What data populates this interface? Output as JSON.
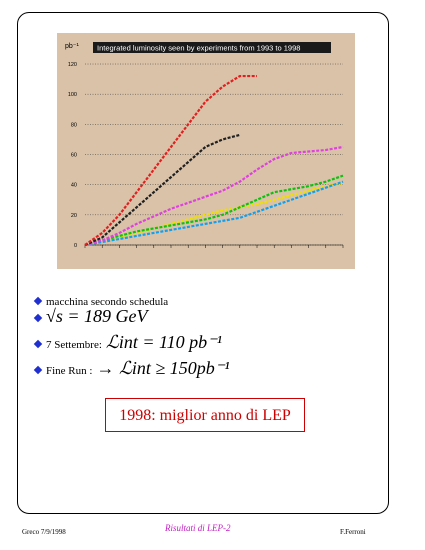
{
  "slide": {
    "bullets": [
      {
        "text": "macchina secondo schedula"
      },
      {
        "text": "√s = 189 GeV"
      },
      {
        "label": "7 Settembre:",
        "text": "ℒint  =  110 pb⁻¹"
      },
      {
        "label": "Fine Run :",
        "text": "→  ℒint  ≥  150pb⁻¹"
      }
    ],
    "highlight": "1998: miglior anno di LEP",
    "footer": {
      "left": "Greco 7/9/1998",
      "center": "Risultati di LEP-2",
      "right": "F.Ferroni"
    }
  },
  "chart_data": {
    "type": "line",
    "title": "Integrated luminosity seen by experiments from 1993 to 1998",
    "y_label": "pb⁻¹",
    "categories": [
      null,
      null,
      null,
      null,
      null,
      null,
      null,
      null,
      null,
      null,
      null,
      null,
      null,
      null,
      null,
      null
    ],
    "series": [
      {
        "color": "#f0e000",
        "values": [
          0,
          2,
          5,
          8,
          11,
          14,
          17,
          20,
          23,
          25,
          27,
          30,
          33,
          36,
          39,
          41
        ]
      },
      {
        "color": "#10c010",
        "values": [
          0,
          3,
          6,
          9,
          11,
          13,
          15,
          17,
          20,
          25,
          30,
          35,
          37,
          39,
          42,
          46
        ]
      },
      {
        "color": "#10a0f0",
        "values": [
          0,
          2,
          4,
          6,
          8,
          10,
          12,
          14,
          16,
          18,
          22,
          26,
          30,
          34,
          38,
          42
        ]
      },
      {
        "color": "#e040e0",
        "values": [
          0,
          3,
          8,
          14,
          19,
          24,
          28,
          32,
          36,
          42,
          50,
          57,
          61,
          62,
          63,
          65
        ]
      },
      {
        "color": "#202020",
        "values": [
          0,
          5,
          15,
          25,
          35,
          45,
          55,
          65,
          70,
          73,
          null,
          null,
          null,
          null,
          null,
          null
        ]
      },
      {
        "color": "#e02020",
        "values": [
          0,
          8,
          20,
          35,
          50,
          65,
          80,
          95,
          105,
          112,
          112,
          null,
          null,
          null,
          null,
          null
        ]
      }
    ],
    "ylim": [
      0,
      122
    ],
    "yticks": [
      0,
      20,
      40,
      60,
      80,
      100,
      120
    ],
    "grid": true
  }
}
